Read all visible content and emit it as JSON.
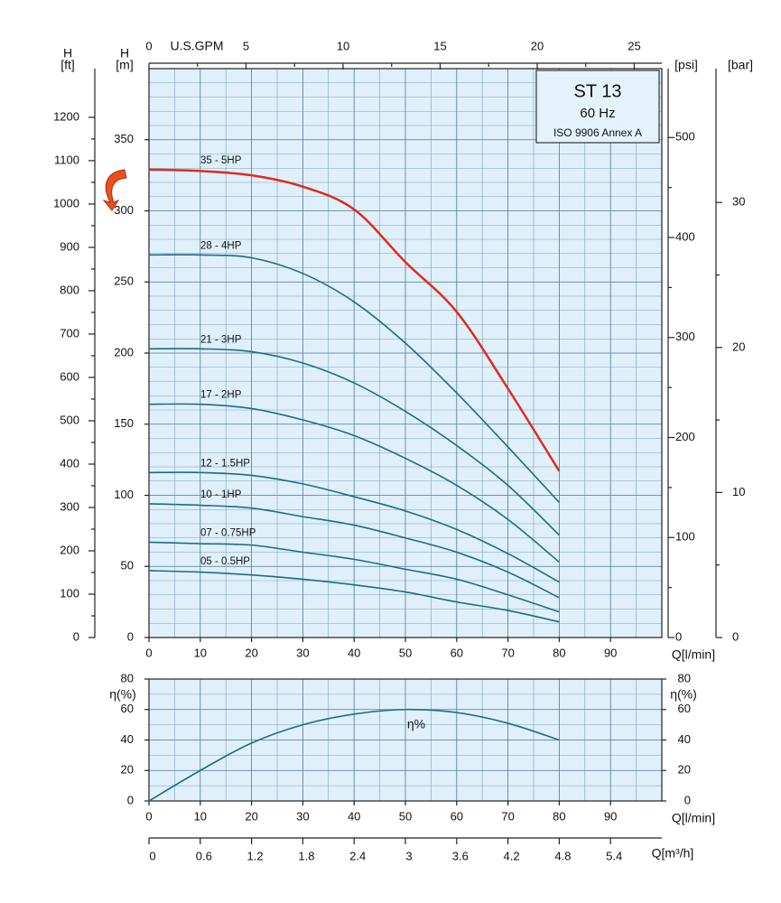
{
  "chart_data": [
    {
      "type": "line",
      "x": [
        0,
        10,
        20,
        30,
        40,
        50,
        60,
        70,
        80
      ],
      "xlim": [
        0,
        100
      ],
      "xticks": [
        0,
        10,
        20,
        30,
        40,
        50,
        60,
        70,
        80,
        90
      ],
      "xlabel": "Q[l/min]",
      "ylim": [
        0,
        400
      ],
      "yticks": [
        0,
        50,
        100,
        150,
        200,
        250,
        300,
        350
      ],
      "ylabel": [
        "H",
        "[m]"
      ],
      "grid": true,
      "ft_axis": {
        "label": [
          "H",
          "[ft]"
        ],
        "lim": [
          0,
          1312.3
        ],
        "ticks": [
          0,
          100,
          200,
          300,
          400,
          500,
          600,
          700,
          800,
          900,
          1000,
          1100,
          1200
        ]
      },
      "psi_axis": {
        "label": "[psi]",
        "lim": [
          0,
          568.9
        ],
        "ticks": [
          0,
          100,
          200,
          300,
          400,
          500
        ]
      },
      "bar_axis": {
        "label": "[bar]",
        "lim": [
          0,
          39.23
        ],
        "ticks": [
          0,
          10,
          20,
          30
        ]
      },
      "gpm_axis": {
        "label": "U.S.GPM",
        "lim": [
          0,
          26.42
        ],
        "ticks": [
          0,
          5,
          10,
          15,
          20,
          25
        ]
      },
      "series": [
        {
          "name": "35 - 5HP",
          "color": "#e02a1e",
          "values": [
            329,
            328,
            325,
            317,
            301,
            264,
            229,
            175,
            117
          ]
        },
        {
          "name": "28 - 4HP",
          "color": "#1c6b8c",
          "values": [
            269,
            269,
            267,
            256,
            236,
            207,
            172,
            134,
            95
          ]
        },
        {
          "name": "21 - 3HP",
          "color": "#1c6b8c",
          "values": [
            203,
            203,
            201,
            193,
            179,
            159,
            135,
            107,
            72
          ]
        },
        {
          "name": "17 - 2HP",
          "color": "#1c6b8c",
          "values": [
            164,
            164,
            161,
            153,
            142,
            126,
            107,
            83,
            53
          ]
        },
        {
          "name": "12 - 1.5HP",
          "color": "#1c6b8c",
          "values": [
            116,
            116,
            114,
            108,
            99,
            89,
            76,
            59,
            39
          ]
        },
        {
          "name": "10 - 1HP",
          "color": "#1c6b8c",
          "values": [
            94,
            93,
            91,
            85,
            79,
            70,
            60,
            46,
            28
          ]
        },
        {
          "name": "07 - 0.75HP",
          "color": "#1c6b8c",
          "values": [
            67,
            66,
            65,
            60,
            55,
            48,
            41,
            30,
            18
          ]
        },
        {
          "name": "05 - 0.5HP",
          "color": "#1c6b8c",
          "values": [
            47,
            46,
            44,
            41,
            37,
            32,
            25,
            19,
            11
          ]
        }
      ]
    },
    {
      "type": "line",
      "x": [
        0,
        10,
        20,
        30,
        40,
        50,
        60,
        70,
        80
      ],
      "xlim": [
        0,
        100
      ],
      "xticks": [
        0,
        10,
        20,
        30,
        40,
        50,
        60,
        70,
        80,
        90
      ],
      "xlabel": "Q[l/min]",
      "ylim": [
        0,
        80
      ],
      "yticks": [
        0,
        20,
        40,
        60,
        80
      ],
      "ylabel": "η(%)",
      "grid": true,
      "m3h_axis": {
        "label": "Q[m³/h]",
        "lim": [
          0,
          6
        ],
        "ticks": [
          0,
          0.6,
          1.2,
          1.8,
          2.4,
          3,
          3.6,
          4.2,
          4.8,
          5.4
        ]
      },
      "series": [
        {
          "name": "η%",
          "color": "#1c6b8c",
          "values": [
            0,
            20,
            38,
            50,
            57,
            60,
            58,
            51,
            40
          ]
        }
      ]
    }
  ],
  "info_box": {
    "title": "ST 13",
    "frequency": "60 Hz",
    "standard": "ISO 9906 Annex A"
  }
}
